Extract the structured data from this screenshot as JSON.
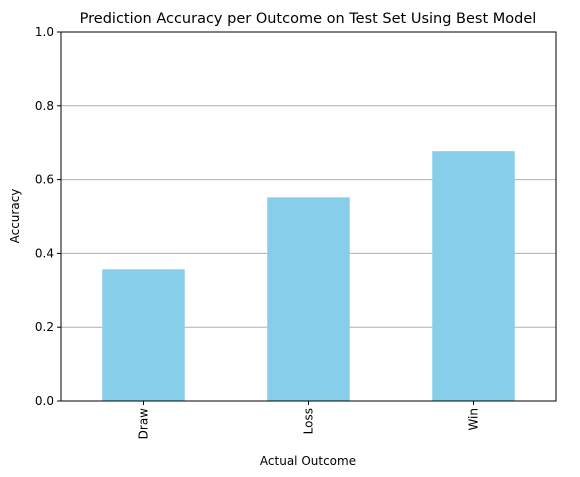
{
  "chart_data": {
    "type": "bar",
    "title": "Prediction Accuracy per Outcome on Test Set Using Best Model",
    "xlabel": "Actual Outcome",
    "ylabel": "Accuracy",
    "categories": [
      "Draw",
      "Loss",
      "Win"
    ],
    "values": [
      0.357,
      0.552,
      0.677
    ],
    "ylim": [
      0,
      1.0
    ],
    "yticks": [
      "0.0",
      "0.2",
      "0.4",
      "0.6",
      "0.8",
      "1.0"
    ],
    "grid": "y-major",
    "legend": "none",
    "bar_color": "#87CEEB",
    "grid_color": "#b0b0b0"
  }
}
